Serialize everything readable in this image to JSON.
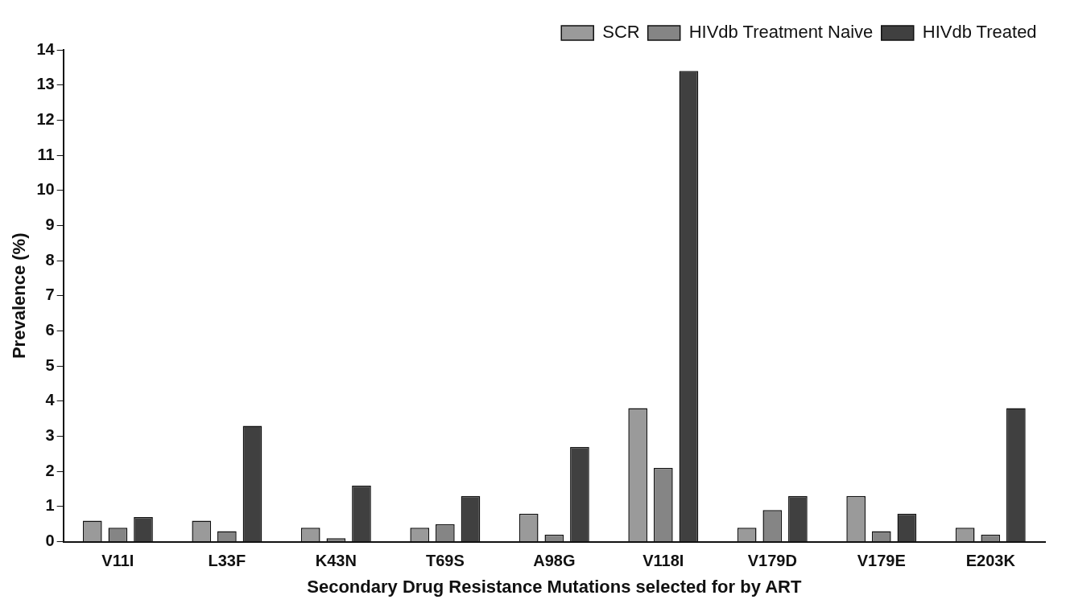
{
  "chart_data": {
    "type": "bar",
    "xlabel": "Secondary Drug Resistance Mutations selected for by ART",
    "ylabel": "Prevalence (%)",
    "categories": [
      "V11I",
      "L33F",
      "K43N",
      "T69S",
      "A98G",
      "V118I",
      "V179D",
      "V179E",
      "E203K"
    ],
    "series": [
      {
        "name": "SCR",
        "color": "#9a9a9a",
        "values": [
          0.6,
          0.6,
          0.4,
          0.4,
          0.8,
          3.8,
          0.4,
          1.3,
          0.4
        ]
      },
      {
        "name": "HIVdb Treatment Naive",
        "color": "#858585",
        "values": [
          0.4,
          0.3,
          0.1,
          0.5,
          0.2,
          2.1,
          0.9,
          0.3,
          0.2
        ]
      },
      {
        "name": "HIVdb Treated",
        "color": "#404040",
        "values": [
          0.7,
          3.3,
          1.6,
          1.3,
          2.7,
          13.4,
          1.3,
          0.8,
          3.8
        ]
      }
    ],
    "ylim": [
      0,
      14
    ],
    "yticks": [
      0,
      1,
      2,
      3,
      4,
      5,
      6,
      7,
      8,
      9,
      10,
      11,
      12,
      13,
      14
    ],
    "grid": false,
    "legend": "top right"
  }
}
